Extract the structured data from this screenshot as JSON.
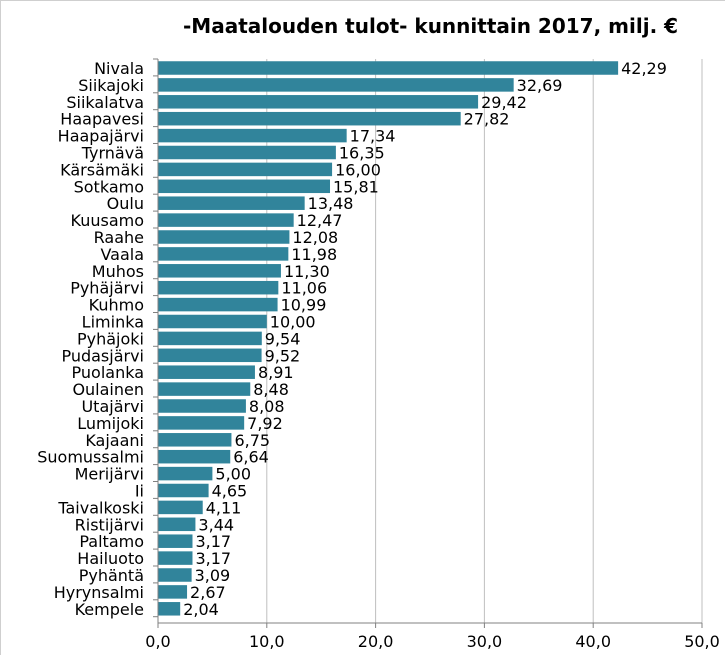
{
  "chart_data": {
    "type": "bar",
    "orientation": "horizontal",
    "title": "-Maatalouden tulot- kunnittain 2017, milj. €",
    "xlabel": "",
    "ylabel": "",
    "xlim": [
      0,
      50
    ],
    "tick_values": [
      0,
      10,
      20,
      30,
      40,
      50
    ],
    "tick_labels": [
      "0,0",
      "10,0",
      "20,0",
      "30,0",
      "40,0",
      "50,0"
    ],
    "grid": true,
    "legend": "none",
    "bar_color": "#31849b",
    "categories": [
      "Nivala",
      "Siikajoki",
      "Siikalatva",
      "Haapavesi",
      "Haapajärvi",
      "Tyrnävä",
      "Kärsämäki",
      "Sotkamo",
      "Oulu",
      "Kuusamo",
      "Raahe",
      "Vaala",
      "Muhos",
      "Pyhäjärvi",
      "Kuhmo",
      "Liminka",
      "Pyhäjoki",
      "Pudasjärvi",
      "Puolanka",
      "Oulainen",
      "Utajärvi",
      "Lumijoki",
      "Kajaani",
      "Suomussalmi",
      "Merijärvi",
      "Ii",
      "Taivalkoski",
      "Ristijärvi",
      "Paltamo",
      "Hailuoto",
      "Pyhäntä",
      "Hyrynsalmi",
      "Kempele"
    ],
    "values": [
      42.29,
      32.69,
      29.42,
      27.82,
      17.34,
      16.35,
      16.0,
      15.81,
      13.48,
      12.47,
      12.08,
      11.98,
      11.3,
      11.06,
      10.99,
      10.0,
      9.54,
      9.52,
      8.91,
      8.48,
      8.08,
      7.92,
      6.75,
      6.64,
      5.0,
      4.65,
      4.11,
      3.44,
      3.17,
      3.17,
      3.09,
      2.67,
      2.04
    ],
    "value_labels": [
      "42,29",
      "32,69",
      "29,42",
      "27,82",
      "17,34",
      "16,35",
      "16,00",
      "15,81",
      "13,48",
      "12,47",
      "12,08",
      "11,98",
      "11,30",
      "11,06",
      "10,99",
      "10,00",
      "9,54",
      "9,52",
      "8,91",
      "8,48",
      "8,08",
      "7,92",
      "6,75",
      "6,64",
      "5,00",
      "4,65",
      "4,11",
      "3,44",
      "3,17",
      "3,17",
      "3,09",
      "2,67",
      "2,04"
    ]
  }
}
